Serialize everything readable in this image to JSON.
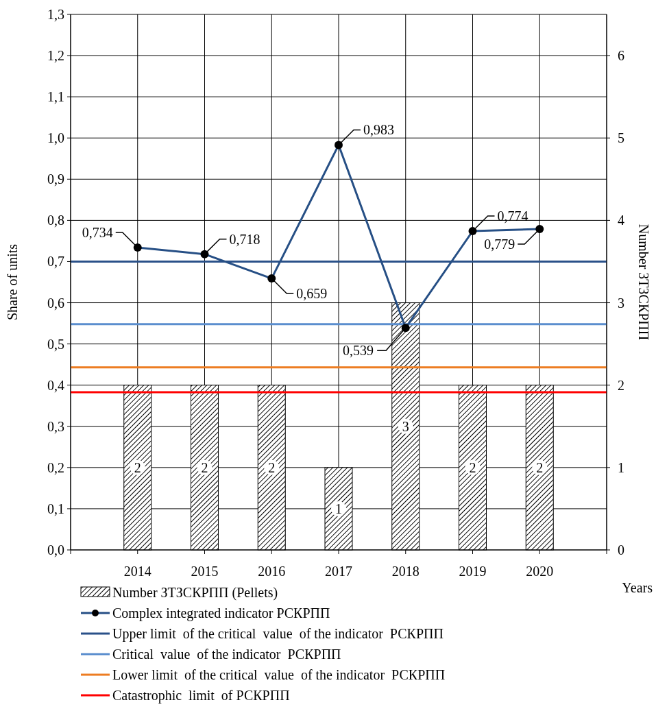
{
  "chart_data": {
    "type": "bar",
    "categories": [
      "2014",
      "2015",
      "2016",
      "2017",
      "2018",
      "2019",
      "2020"
    ],
    "xlabel": "Years",
    "ylabel": "Share of units",
    "y2label": "Number ЗТЗСКРПП",
    "series": [
      {
        "name": "Number ЗТЗСКРПП (Pellets)",
        "axis": "y2",
        "color": "#000000",
        "values": [
          2,
          2,
          2,
          1,
          3,
          2,
          2
        ]
      },
      {
        "name": "Complex integrated indicator РСКРПП",
        "type": "line",
        "color": "#264f85",
        "values": [
          0.734,
          0.718,
          0.659,
          0.983,
          0.539,
          0.774,
          0.779
        ],
        "value_labels": [
          "0,734",
          "0,718",
          "0,659",
          "0,983",
          "0,539",
          "0,774",
          "0,779"
        ]
      }
    ],
    "ref_lines": [
      {
        "axis": "y",
        "value": 0.7,
        "label": "Upper limit  of the critical  value  of the indicator  РСКРПП",
        "color": "#2a5189"
      },
      {
        "axis": "y",
        "value": 0.548,
        "label": "Critical  value  of the indicator  РСКРПП",
        "color": "#5b8ece"
      },
      {
        "axis": "y",
        "value": 0.443,
        "label": "Lower limit  of the critical  value  of the indicator  РСКРПП",
        "color": "#ed7d22"
      },
      {
        "axis": "y",
        "value": 0.383,
        "label": "Catastrophic  limit  of РСКРПП",
        "color": "#ff0000"
      }
    ],
    "ylim": [
      0,
      1.3
    ],
    "yticks": [
      {
        "value": 0,
        "label": "0,0"
      },
      {
        "value": 0.1,
        "label": "0,1"
      },
      {
        "value": 0.2,
        "label": "0,2"
      },
      {
        "value": 0.3,
        "label": "0,3"
      },
      {
        "value": 0.4,
        "label": "0,4"
      },
      {
        "value": 0.5,
        "label": "0,5"
      },
      {
        "value": 0.6,
        "label": "0,6"
      },
      {
        "value": 0.7,
        "label": "0,7"
      },
      {
        "value": 0.8,
        "label": "0,8"
      },
      {
        "value": 0.9,
        "label": "0,9"
      },
      {
        "value": 1,
        "label": "1,0"
      },
      {
        "value": 1.1,
        "label": "1,1"
      },
      {
        "value": 1.2,
        "label": "1,2"
      },
      {
        "value": 1.3,
        "label": "1,3"
      }
    ],
    "y2lim": [
      0,
      6.5
    ],
    "y2ticks": [
      0,
      1,
      2,
      3,
      4,
      5,
      6
    ],
    "grid": true,
    "legend": "bottom",
    "marker": "circle",
    "data_labels": true
  }
}
